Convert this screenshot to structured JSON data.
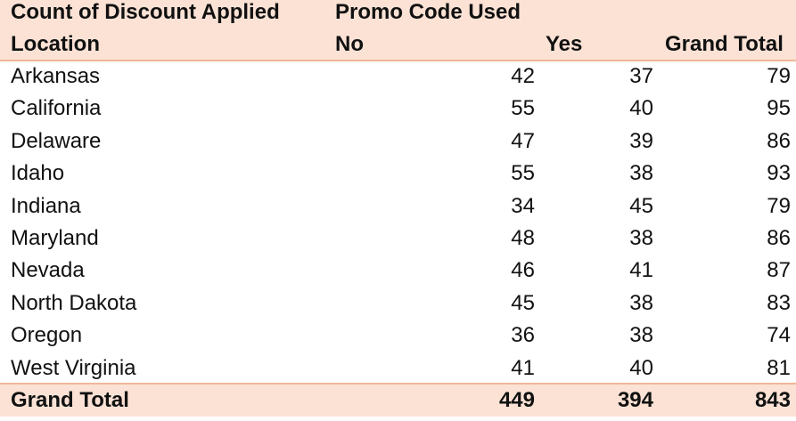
{
  "pivot": {
    "value_field": "Count of Discount Applied",
    "column_field": "Promo Code Used",
    "row_field": "Location",
    "column_headers": [
      "No",
      "Yes",
      "Grand Total"
    ],
    "rows": [
      {
        "label": "Arkansas",
        "no": "42",
        "yes": "37",
        "total": "79"
      },
      {
        "label": "California",
        "no": "55",
        "yes": "40",
        "total": "95"
      },
      {
        "label": "Delaware",
        "no": "47",
        "yes": "39",
        "total": "86"
      },
      {
        "label": "Idaho",
        "no": "55",
        "yes": "38",
        "total": "93"
      },
      {
        "label": "Indiana",
        "no": "34",
        "yes": "45",
        "total": "79"
      },
      {
        "label": "Maryland",
        "no": "48",
        "yes": "38",
        "total": "86"
      },
      {
        "label": "Nevada",
        "no": "46",
        "yes": "41",
        "total": "87"
      },
      {
        "label": "North Dakota",
        "no": "45",
        "yes": "38",
        "total": "83"
      },
      {
        "label": "Oregon",
        "no": "36",
        "yes": "38",
        "total": "74"
      },
      {
        "label": "West Virginia",
        "no": "41",
        "yes": "40",
        "total": "81"
      }
    ],
    "grand_total": {
      "label": "Grand Total",
      "no": "449",
      "yes": "394",
      "total": "843"
    }
  },
  "colors": {
    "header_fill": "#fbe2d5",
    "border": "#f0b695"
  }
}
